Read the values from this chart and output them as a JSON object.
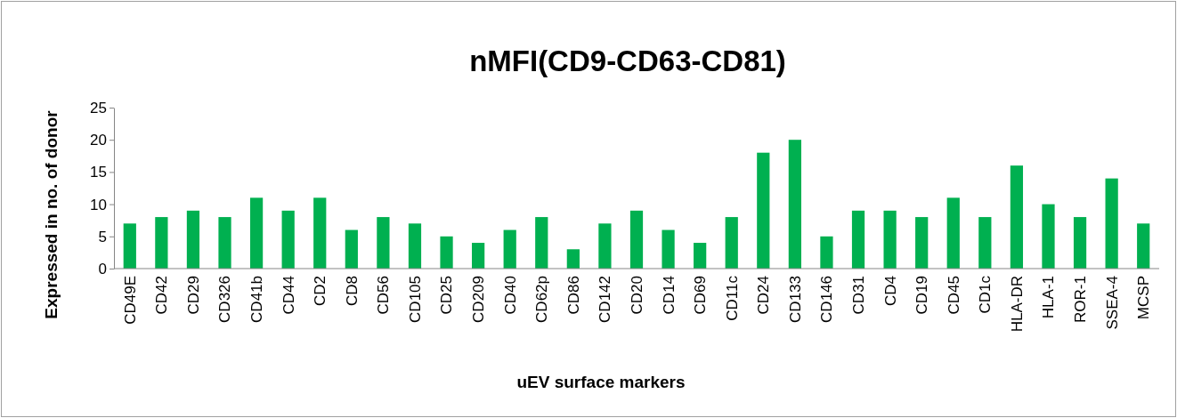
{
  "chart_data": {
    "type": "bar",
    "title": "nMFI(CD9-CD63-CD81)",
    "xlabel": "uEV surface markers",
    "ylabel": "Expressed in no. of donor",
    "categories": [
      "CD49E",
      "CD42",
      "CD29",
      "CD326",
      "CD41b",
      "CD44",
      "CD2",
      "CD8",
      "CD56",
      "CD105",
      "CD25",
      "CD209",
      "CD40",
      "CD62p",
      "CD86",
      "CD142",
      "CD20",
      "CD14",
      "CD69",
      "CD11c",
      "CD24",
      "CD133",
      "CD146",
      "CD31",
      "CD4",
      "CD19",
      "CD45",
      "CD1c",
      "HLA-DR",
      "HLA-1",
      "ROR-1",
      "SSEA-4",
      "MCSP"
    ],
    "values": [
      7,
      8,
      9,
      8,
      11,
      9,
      11,
      6,
      8,
      7,
      5,
      4,
      6,
      8,
      3,
      7,
      9,
      6,
      4,
      8,
      18,
      20,
      5,
      9,
      9,
      8,
      11,
      8,
      16,
      10,
      8,
      14,
      7
    ],
    "color": "#00b050",
    "ylim": [
      0,
      25
    ],
    "yticks": [
      0,
      5,
      10,
      15,
      20,
      25
    ],
    "grid": false
  }
}
